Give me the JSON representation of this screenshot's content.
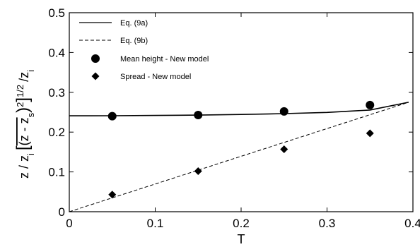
{
  "chart_data": {
    "type": "line",
    "xlabel": "T",
    "ylabel_prefix": "z / z",
    "ylabel_prefix_sub": "i",
    "ylabel_inner": "(z - z",
    "ylabel_inner_sub": "s",
    "ylabel_exp_inner": "2",
    "ylabel_exp_outer": "1/2",
    "ylabel_suffix": "/z",
    "ylabel_suffix_sub": "i",
    "xlim": [
      0,
      0.4
    ],
    "ylim": [
      0,
      0.5
    ],
    "x_ticks": [
      "0",
      "0.1",
      "0.2",
      "0.3",
      "0.4"
    ],
    "y_ticks": [
      "0",
      "0.1",
      "0.2",
      "0.3",
      "0.4",
      "0.5"
    ],
    "x_tick_values": [
      0,
      0.1,
      0.2,
      0.3,
      0.4
    ],
    "y_tick_values": [
      0,
      0.1,
      0.2,
      0.3,
      0.4,
      0.5
    ],
    "legend_position": "top-left",
    "series": [
      {
        "name": "Eq. (9a)",
        "style": "solid-line",
        "x": [
          0,
          0.05,
          0.1,
          0.15,
          0.2,
          0.25,
          0.3,
          0.35,
          0.395
        ],
        "y": [
          0.241,
          0.2412,
          0.2418,
          0.2428,
          0.2443,
          0.2465,
          0.2495,
          0.2555,
          0.275
        ]
      },
      {
        "name": "Eq. (9b)",
        "style": "dashed-line",
        "x": [
          0,
          0.395
        ],
        "y": [
          0,
          0.275
        ]
      },
      {
        "name": "Mean height - New model",
        "style": "circle-marker",
        "x": [
          0.05,
          0.15,
          0.25,
          0.35
        ],
        "y": [
          0.24,
          0.243,
          0.252,
          0.268
        ]
      },
      {
        "name": "Spread - New model",
        "style": "diamond-marker",
        "x": [
          0.05,
          0.15,
          0.25,
          0.35
        ],
        "y": [
          0.043,
          0.102,
          0.157,
          0.197
        ]
      }
    ]
  }
}
